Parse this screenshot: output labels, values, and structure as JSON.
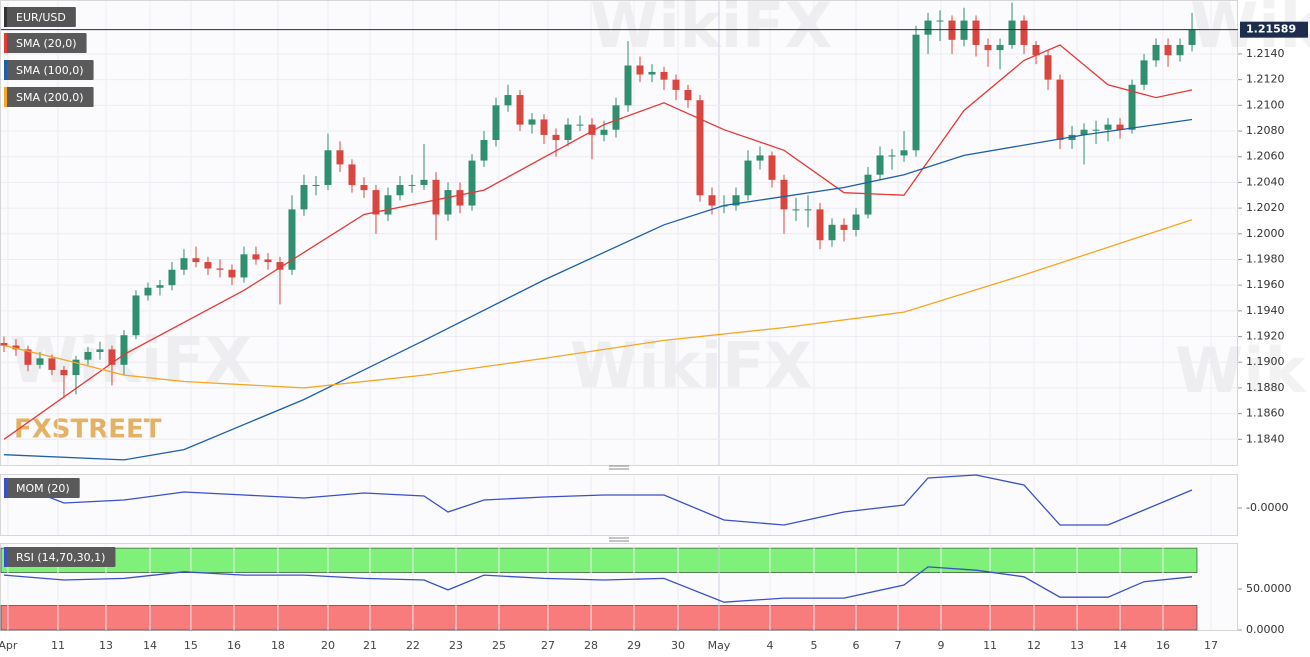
{
  "branding": {
    "logo": "FXSTREET",
    "watermark": "WikiFX"
  },
  "chart_data": [
    {
      "type": "candlestick",
      "symbol": "EUR/USD",
      "up_color": "#2f8f6e",
      "down_color": "#d9463f",
      "xlim": [
        -0.33,
        102.83
      ],
      "ylim": [
        1.182,
        1.2182
      ],
      "grid": true,
      "last_price": 1.21589,
      "last_price_color": "#1f2d4d",
      "yticks": [
        {
          "value": 1.184,
          "label": "1.1840"
        },
        {
          "value": 1.186,
          "label": "1.1860"
        },
        {
          "value": 1.188,
          "label": "1.1880"
        },
        {
          "value": 1.19,
          "label": "1.1900"
        },
        {
          "value": 1.192,
          "label": "1.1920"
        },
        {
          "value": 1.194,
          "label": "1.1940"
        },
        {
          "value": 1.196,
          "label": "1.1960"
        },
        {
          "value": 1.198,
          "label": "1.1980"
        },
        {
          "value": 1.2,
          "label": "1.2000"
        },
        {
          "value": 1.202,
          "label": "1.2020"
        },
        {
          "value": 1.204,
          "label": "1.2040"
        },
        {
          "value": 1.206,
          "label": "1.2060"
        },
        {
          "value": 1.208,
          "label": "1.2080"
        },
        {
          "value": 1.21,
          "label": "1.2100"
        },
        {
          "value": 1.212,
          "label": "1.2120"
        },
        {
          "value": 1.214,
          "label": "1.2140"
        }
      ],
      "xticks": [
        {
          "value": 0.33,
          "label": "Apr"
        },
        {
          "value": 4.5,
          "label": "11"
        },
        {
          "value": 8.5,
          "label": "13"
        },
        {
          "value": 12.17,
          "label": "14"
        },
        {
          "value": 15.58,
          "label": "15"
        },
        {
          "value": 19.17,
          "label": "16"
        },
        {
          "value": 22.83,
          "label": "18"
        },
        {
          "value": 27,
          "label": "20"
        },
        {
          "value": 30.5,
          "label": "21"
        },
        {
          "value": 34.08,
          "label": "22"
        },
        {
          "value": 37.67,
          "label": "23"
        },
        {
          "value": 41.25,
          "label": "25"
        },
        {
          "value": 45.33,
          "label": "27"
        },
        {
          "value": 48.92,
          "label": "28"
        },
        {
          "value": 52.5,
          "label": "29"
        },
        {
          "value": 56.17,
          "label": "30"
        },
        {
          "value": 59.58,
          "label": "May"
        },
        {
          "value": 63.83,
          "label": "4"
        },
        {
          "value": 67.5,
          "label": "5"
        },
        {
          "value": 71,
          "label": "6"
        },
        {
          "value": 74.5,
          "label": "7"
        },
        {
          "value": 78.08,
          "label": "9"
        },
        {
          "value": 82.17,
          "label": "11"
        },
        {
          "value": 85.83,
          "label": "12"
        },
        {
          "value": 89.42,
          "label": "13"
        },
        {
          "value": 93,
          "label": "14"
        },
        {
          "value": 96.58,
          "label": "16"
        },
        {
          "value": 100.58,
          "label": "17"
        }
      ],
      "candles": [
        [
          1.1915,
          1.192,
          1.1908,
          1.1913
        ],
        [
          1.1913,
          1.1918,
          1.1905,
          1.191
        ],
        [
          1.191,
          1.1913,
          1.1893,
          1.1898
        ],
        [
          1.1898,
          1.1908,
          1.1895,
          1.1903
        ],
        [
          1.1903,
          1.1906,
          1.189,
          1.1894
        ],
        [
          1.1894,
          1.1897,
          1.1872,
          1.189
        ],
        [
          1.189,
          1.1905,
          1.1875,
          1.1902
        ],
        [
          1.1902,
          1.1912,
          1.1898,
          1.1908
        ],
        [
          1.1908,
          1.1916,
          1.1902,
          1.191
        ],
        [
          1.191,
          1.1913,
          1.1882,
          1.1898
        ],
        [
          1.1898,
          1.1925,
          1.189,
          1.1921
        ],
        [
          1.1921,
          1.1956,
          1.1918,
          1.1952
        ],
        [
          1.1952,
          1.1962,
          1.1948,
          1.1958
        ],
        [
          1.1958,
          1.1964,
          1.1952,
          1.196
        ],
        [
          1.196,
          1.1978,
          1.1956,
          1.1972
        ],
        [
          1.1972,
          1.1988,
          1.1968,
          1.1981
        ],
        [
          1.1981,
          1.199,
          1.1974,
          1.1978
        ],
        [
          1.1978,
          1.1982,
          1.1968,
          1.1973
        ],
        [
          1.1973,
          1.198,
          1.1966,
          1.1972
        ],
        [
          1.1972,
          1.1976,
          1.196,
          1.1966
        ],
        [
          1.1966,
          1.199,
          1.1962,
          1.1984
        ],
        [
          1.1984,
          1.199,
          1.1976,
          1.198
        ],
        [
          1.198,
          1.1985,
          1.1972,
          1.1978
        ],
        [
          1.1978,
          1.1982,
          1.1945,
          1.1972
        ],
        [
          1.1972,
          1.203,
          1.1968,
          1.2019
        ],
        [
          1.2019,
          1.2046,
          1.2014,
          1.2038
        ],
        [
          1.2038,
          1.2045,
          1.203,
          1.2038
        ],
        [
          1.2038,
          1.2078,
          1.2034,
          1.2065
        ],
        [
          1.2065,
          1.2072,
          1.2048,
          1.2054
        ],
        [
          1.2054,
          1.2058,
          1.2032,
          1.2038
        ],
        [
          1.2038,
          1.2044,
          1.2028,
          1.2034
        ],
        [
          1.2034,
          1.2038,
          1.2,
          1.2015
        ],
        [
          1.2015,
          1.2036,
          1.201,
          1.203
        ],
        [
          1.203,
          1.2045,
          1.2026,
          1.2038
        ],
        [
          1.2038,
          1.2046,
          1.2032,
          1.2038
        ],
        [
          1.2038,
          1.207,
          1.2034,
          1.2042
        ],
        [
          1.2042,
          1.2048,
          1.1995,
          1.2015
        ],
        [
          1.2015,
          1.204,
          1.201,
          1.2034
        ],
        [
          1.2034,
          1.204,
          1.2016,
          1.2022
        ],
        [
          1.2022,
          1.2062,
          1.2018,
          1.2057
        ],
        [
          1.2057,
          1.208,
          1.2052,
          1.2073
        ],
        [
          1.2073,
          1.2106,
          1.2068,
          1.21
        ],
        [
          1.21,
          1.2116,
          1.2095,
          1.2108
        ],
        [
          1.2108,
          1.2112,
          1.208,
          1.2085
        ],
        [
          1.2085,
          1.2094,
          1.2078,
          1.2089
        ],
        [
          1.2089,
          1.2093,
          1.207,
          1.2077
        ],
        [
          1.2077,
          1.2082,
          1.206,
          1.2073
        ],
        [
          1.2073,
          1.209,
          1.2068,
          1.2085
        ],
        [
          1.2085,
          1.2092,
          1.208,
          1.2085
        ],
        [
          1.2085,
          1.209,
          1.2058,
          1.2077
        ],
        [
          1.2077,
          1.2088,
          1.2072,
          1.2081
        ],
        [
          1.2081,
          1.2106,
          1.2075,
          1.21
        ],
        [
          1.21,
          1.215,
          1.2095,
          1.2131
        ],
        [
          1.2131,
          1.2138,
          1.2118,
          1.2124
        ],
        [
          1.2124,
          1.2132,
          1.2118,
          1.2126
        ],
        [
          1.2126,
          1.213,
          1.2112,
          1.212
        ],
        [
          1.212,
          1.2124,
          1.2104,
          1.2112
        ],
        [
          1.2112,
          1.2116,
          1.2098,
          1.2104
        ],
        [
          1.2104,
          1.2108,
          1.2025,
          1.203
        ],
        [
          1.203,
          1.2036,
          1.2015,
          1.2022
        ],
        [
          1.2022,
          1.203,
          1.2016,
          1.2022
        ],
        [
          1.2022,
          1.2036,
          1.2018,
          1.203
        ],
        [
          1.203,
          1.2065,
          1.2026,
          1.2057
        ],
        [
          1.2057,
          1.2068,
          1.205,
          1.2061
        ],
        [
          1.2061,
          1.2064,
          1.2036,
          1.2042
        ],
        [
          1.2042,
          1.2046,
          1.2,
          1.2019
        ],
        [
          1.2019,
          1.2028,
          1.201,
          1.2019
        ],
        [
          1.2019,
          1.203,
          1.2005,
          1.2019
        ],
        [
          1.2019,
          1.2024,
          1.1988,
          1.1995
        ],
        [
          1.1995,
          1.2012,
          1.199,
          1.2007
        ],
        [
          1.2007,
          1.2012,
          1.1994,
          1.2003
        ],
        [
          1.2003,
          1.202,
          1.1998,
          1.2015
        ],
        [
          1.2015,
          1.2052,
          1.2012,
          1.2046
        ],
        [
          1.2046,
          1.2068,
          1.2042,
          1.2061
        ],
        [
          1.2061,
          1.2066,
          1.205,
          1.2061
        ],
        [
          1.2061,
          1.208,
          1.2056,
          1.2065
        ],
        [
          1.2065,
          1.2162,
          1.206,
          1.2155
        ],
        [
          1.2155,
          1.2172,
          1.214,
          1.2166
        ],
        [
          1.2166,
          1.2174,
          1.215,
          1.2166
        ],
        [
          1.2166,
          1.217,
          1.214,
          1.2151
        ],
        [
          1.2151,
          1.2176,
          1.2146,
          1.2166
        ],
        [
          1.2166,
          1.217,
          1.2138,
          1.2147
        ],
        [
          1.2147,
          1.2152,
          1.213,
          1.2143
        ],
        [
          1.2143,
          1.2152,
          1.2128,
          1.2147
        ],
        [
          1.2147,
          1.218,
          1.2144,
          1.2166
        ],
        [
          1.2166,
          1.217,
          1.214,
          1.2147
        ],
        [
          1.2147,
          1.215,
          1.2132,
          1.2139
        ],
        [
          1.2139,
          1.2143,
          1.2112,
          1.212
        ],
        [
          1.212,
          1.2124,
          1.2066,
          1.2073
        ],
        [
          1.2073,
          1.2084,
          1.2066,
          1.2077
        ],
        [
          1.2077,
          1.2086,
          1.2054,
          1.2081
        ],
        [
          1.2081,
          1.2088,
          1.207,
          1.2081
        ],
        [
          1.2081,
          1.209,
          1.2072,
          1.2085
        ],
        [
          1.2085,
          1.209,
          1.2074,
          1.2081
        ],
        [
          1.2081,
          1.212,
          1.2078,
          1.2116
        ],
        [
          1.2116,
          1.214,
          1.2112,
          1.2135
        ],
        [
          1.2135,
          1.2152,
          1.213,
          1.2147
        ],
        [
          1.2147,
          1.2152,
          1.213,
          1.2139
        ],
        [
          1.2139,
          1.2152,
          1.2134,
          1.2147
        ],
        [
          1.2147,
          1.2172,
          1.2142,
          1.2159
        ]
      ],
      "series": [
        {
          "name": "SMA (20,0)",
          "color": "#e53935",
          "x": [
            0,
            10,
            20,
            30,
            40,
            50,
            55,
            60,
            65,
            70,
            75,
            80,
            85,
            88,
            92,
            96,
            99
          ],
          "values": [
            1.184,
            1.1906,
            1.1956,
            1.2015,
            1.2034,
            1.2085,
            1.2102,
            1.2081,
            1.2065,
            1.2032,
            1.203,
            1.2096,
            1.2135,
            1.2147,
            1.2116,
            1.2106,
            1.2112
          ]
        },
        {
          "name": "SMA (100,0)",
          "color": "#1f5fa8",
          "x": [
            0,
            10,
            15,
            25,
            35,
            45,
            55,
            60,
            70,
            75,
            80,
            90,
            99
          ],
          "values": [
            1.1828,
            1.1824,
            1.1832,
            1.1871,
            1.1917,
            1.1964,
            1.2007,
            1.2022,
            1.2036,
            1.2046,
            1.2061,
            1.2077,
            1.2089
          ]
        },
        {
          "name": "SMA (200,0)",
          "color": "#f5a623",
          "x": [
            0,
            5,
            10,
            15,
            25,
            35,
            45,
            55,
            65,
            75,
            85,
            99
          ],
          "values": [
            1.1913,
            1.1902,
            1.189,
            1.1885,
            1.188,
            1.189,
            1.1903,
            1.1917,
            1.1927,
            1.1939,
            1.1968,
            1.2011
          ]
        }
      ]
    },
    {
      "type": "line",
      "xlim": [
        -0.33,
        102.83
      ],
      "ylim": [
        -0.0054,
        0.0066
      ],
      "yticks": [
        {
          "value": 0,
          "label": "-0.0000"
        }
      ],
      "series": [
        {
          "name": "MOM (20)",
          "color": "#3a4fc8",
          "x": [
            0,
            5,
            10,
            15,
            20,
            25,
            30,
            35,
            37,
            40,
            45,
            50,
            55,
            60,
            65,
            70,
            75,
            77,
            81,
            85,
            88,
            92,
            95,
            99
          ],
          "values": [
            0.0056,
            0.001,
            0.0016,
            0.0032,
            0.0026,
            0.002,
            0.003,
            0.0024,
            -0.0008,
            0.0016,
            0.0022,
            0.0026,
            0.0026,
            -0.0024,
            -0.0034,
            -0.0008,
            0.0006,
            0.006,
            0.0066,
            0.0046,
            -0.0034,
            -0.0034,
            -0.0004,
            0.0036
          ]
        }
      ]
    },
    {
      "type": "line",
      "xlim": [
        -0.33,
        102.83
      ],
      "ylim": [
        0,
        105
      ],
      "yticks": [
        {
          "value": 50,
          "label": "50.0000"
        },
        {
          "value": 0,
          "label": "0.0000"
        }
      ],
      "zones": [
        {
          "range": [
            70,
            100
          ],
          "color": "#7ff07a"
        },
        {
          "range": [
            0,
            30
          ],
          "color": "#f87c7c"
        }
      ],
      "series": [
        {
          "name": "RSI (14,70,30,1)",
          "color": "#3a4fc8",
          "x": [
            0,
            5,
            10,
            15,
            20,
            25,
            30,
            35,
            37,
            40,
            45,
            50,
            55,
            60,
            65,
            70,
            75,
            77,
            81,
            85,
            88,
            92,
            95,
            99
          ],
          "values": [
            67,
            61,
            63,
            71,
            67,
            67,
            63,
            61,
            49,
            67,
            63,
            61,
            63,
            34,
            39,
            39,
            55,
            77,
            73,
            65,
            40,
            40,
            59,
            65
          ]
        }
      ]
    }
  ]
}
